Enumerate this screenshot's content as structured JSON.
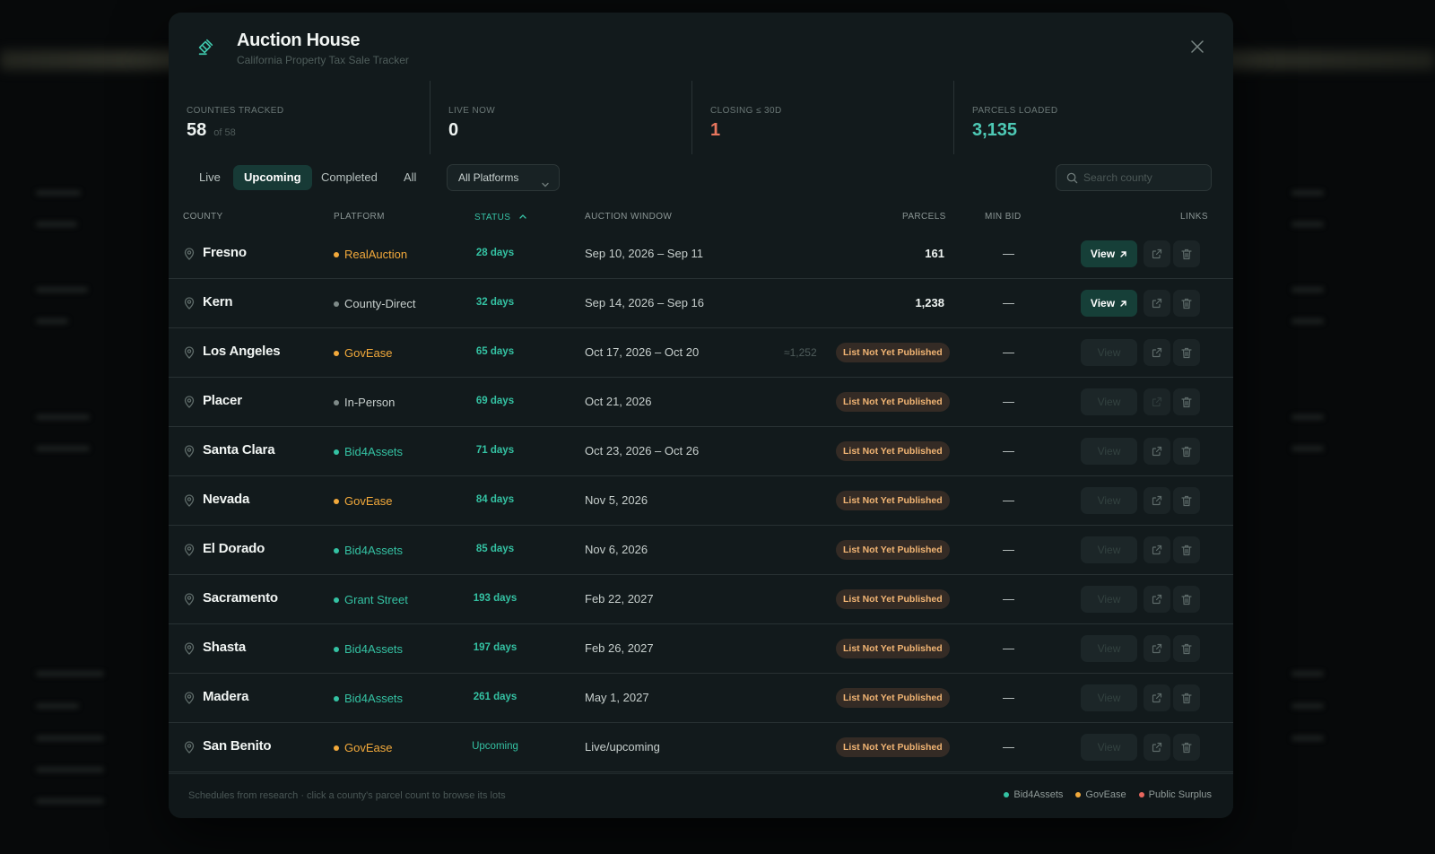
{
  "app": {
    "title": "Auction House",
    "subtitle": "California Property Tax Sale Tracker"
  },
  "stats": [
    {
      "label": "COUNTIES TRACKED",
      "value": "58",
      "sub": "of 58",
      "color": "#eef3f1"
    },
    {
      "label": "LIVE NOW",
      "value": "0",
      "sub": "",
      "color": "#eef3f1"
    },
    {
      "label": "CLOSING ≤ 30D",
      "value": "1",
      "sub": "",
      "color": "#e8765e"
    },
    {
      "label": "PARCELS LOADED",
      "value": "3,135",
      "sub": "",
      "color": "#4ec9b5"
    }
  ],
  "tabs": [
    "Live",
    "Upcoming",
    "Completed",
    "All"
  ],
  "active_tab": "Upcoming",
  "platform_filter": {
    "selected": "All Platforms"
  },
  "search": {
    "placeholder": "Search county",
    "value": ""
  },
  "columns": {
    "county": "COUNTY",
    "platform": "PLATFORM",
    "status": "STATUS",
    "window": "AUCTION WINDOW",
    "parcels": "PARCELS",
    "min_bid": "MIN BID",
    "links": "LINKS"
  },
  "sorted_column": "status",
  "view_label": "View",
  "rows": [
    {
      "county": "Fresno",
      "platform": "RealAuction",
      "platform_color": "#f2a93b",
      "platform_text_color": "#f2a93b",
      "status": "28 days",
      "window": "Sep 10, 2026 – Sep 11",
      "parcels": "161",
      "approx": "",
      "badge": "",
      "min_bid": "—",
      "view_enabled": true
    },
    {
      "county": "Kern",
      "platform": "County-Direct",
      "platform_color": "#7e8a88",
      "platform_text_color": "#c7cfcd",
      "status": "32 days",
      "window": "Sep 14, 2026 – Sep 16",
      "parcels": "1,238",
      "approx": "",
      "badge": "",
      "min_bid": "—",
      "view_enabled": true
    },
    {
      "county": "Los Angeles",
      "platform": "GovEase",
      "platform_color": "#f2a93b",
      "platform_text_color": "#f2a93b",
      "status": "65 days",
      "window": "Oct 17, 2026 – Oct 20",
      "parcels": "",
      "approx": "≈1,252",
      "badge": "List Not Yet Published",
      "min_bid": "—",
      "view_enabled": false
    },
    {
      "county": "Placer",
      "platform": "In-Person",
      "platform_color": "#7e8a88",
      "platform_text_color": "#c7cfcd",
      "status": "69 days",
      "window": "Oct 21, 2026",
      "parcels": "",
      "approx": "",
      "badge": "List Not Yet Published",
      "min_bid": "—",
      "view_enabled": false
    },
    {
      "county": "Santa Clara",
      "platform": "Bid4Assets",
      "platform_color": "#34c2a3",
      "platform_text_color": "#34c2a3",
      "status": "71 days",
      "window": "Oct 23, 2026 – Oct 26",
      "parcels": "",
      "approx": "",
      "badge": "List Not Yet Published",
      "min_bid": "—",
      "view_enabled": false
    },
    {
      "county": "Nevada",
      "platform": "GovEase",
      "platform_color": "#f2a93b",
      "platform_text_color": "#f2a93b",
      "status": "84 days",
      "window": "Nov 5, 2026",
      "parcels": "",
      "approx": "",
      "badge": "List Not Yet Published",
      "min_bid": "—",
      "view_enabled": false
    },
    {
      "county": "El Dorado",
      "platform": "Bid4Assets",
      "platform_color": "#34c2a3",
      "platform_text_color": "#34c2a3",
      "status": "85 days",
      "window": "Nov 6, 2026",
      "parcels": "",
      "approx": "",
      "badge": "List Not Yet Published",
      "min_bid": "—",
      "view_enabled": false
    },
    {
      "county": "Sacramento",
      "platform": "Grant Street",
      "platform_color": "#34c2a3",
      "platform_text_color": "#34c2a3",
      "status": "193 days",
      "window": "Feb 22, 2027",
      "parcels": "",
      "approx": "",
      "badge": "List Not Yet Published",
      "min_bid": "—",
      "view_enabled": false
    },
    {
      "county": "Shasta",
      "platform": "Bid4Assets",
      "platform_color": "#34c2a3",
      "platform_text_color": "#34c2a3",
      "status": "197 days",
      "window": "Feb 26, 2027",
      "parcels": "",
      "approx": "",
      "badge": "List Not Yet Published",
      "min_bid": "—",
      "view_enabled": false
    },
    {
      "county": "Madera",
      "platform": "Bid4Assets",
      "platform_color": "#34c2a3",
      "platform_text_color": "#34c2a3",
      "status": "261 days",
      "window": "May 1, 2027",
      "parcels": "",
      "approx": "",
      "badge": "List Not Yet Published",
      "min_bid": "—",
      "view_enabled": false
    },
    {
      "county": "San Benito",
      "platform": "GovEase",
      "platform_color": "#f2a93b",
      "platform_text_color": "#f2a93b",
      "status": "Upcoming",
      "window": "Live/upcoming",
      "parcels": "",
      "approx": "",
      "badge": "List Not Yet Published",
      "min_bid": "—",
      "view_enabled": false
    }
  ],
  "footer": {
    "note": "Schedules from research · click a county's parcel count to browse its lots",
    "legend": [
      {
        "label": "Bid4Assets",
        "color": "#34c2a3"
      },
      {
        "label": "GovEase",
        "color": "#f2a93b"
      },
      {
        "label": "Public Surplus",
        "color": "#e8675e"
      }
    ]
  },
  "colors": {
    "accent": "#34c2a3",
    "badge_text": "#f2b574",
    "modal_bg": "#121a1c"
  }
}
